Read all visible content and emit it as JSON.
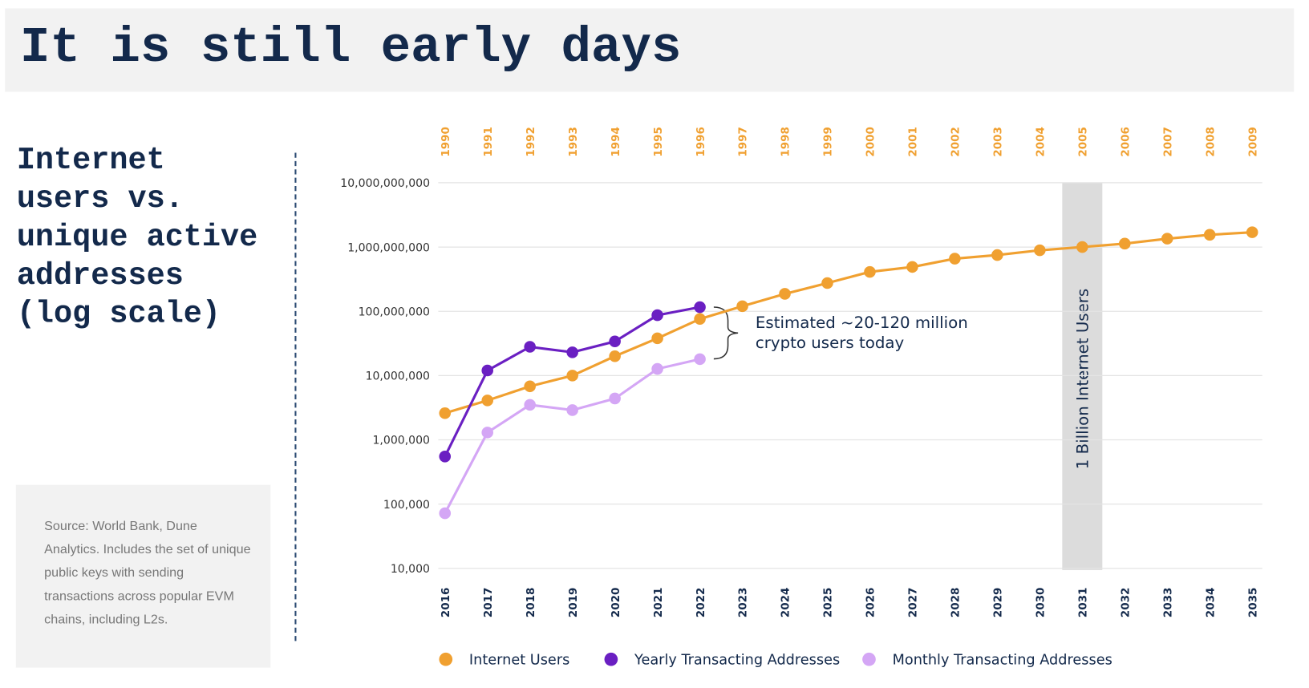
{
  "header": {
    "title": "It is still early days"
  },
  "sidebar": {
    "title": "Internet users vs. unique active addresses (log scale)",
    "source": "Source: World Bank, Dune Analytics. Includes the set of unique public keys with sending transactions across popular EVM chains, including L2s."
  },
  "chart_data": {
    "type": "line",
    "log_scale": true,
    "grid": true,
    "legend": "bottom",
    "categories": [
      "2016",
      "2017",
      "2018",
      "2019",
      "2020",
      "2021",
      "2022",
      "2023",
      "2024",
      "2025",
      "2026",
      "2027",
      "2028",
      "2029",
      "2030",
      "2031",
      "2032",
      "2033",
      "2034",
      "2035"
    ],
    "top_categories": [
      "1990",
      "1991",
      "1992",
      "1993",
      "1994",
      "1995",
      "1996",
      "1997",
      "1998",
      "1999",
      "2000",
      "2001",
      "2002",
      "2003",
      "2004",
      "2005",
      "2006",
      "2007",
      "2008",
      "2009"
    ],
    "ylim": [
      10000,
      10000000000
    ],
    "yticks": [
      {
        "value": 10000,
        "label": "10,000"
      },
      {
        "value": 100000,
        "label": "100,000"
      },
      {
        "value": 1000000,
        "label": "1,000,000"
      },
      {
        "value": 10000000,
        "label": "10,000,000"
      },
      {
        "value": 100000000,
        "label": "100,000,000"
      },
      {
        "value": 1000000000,
        "label": "1,000,000,000"
      },
      {
        "value": 10000000000,
        "label": "10,000,000,000"
      }
    ],
    "series": [
      {
        "name": "Internet Users",
        "color": "#f0a030",
        "values": [
          2600000,
          4100000,
          6800000,
          10000000,
          20000000,
          38000000,
          76000000,
          120000000,
          187000000,
          275000000,
          410000000,
          490000000,
          660000000,
          750000000,
          890000000,
          1000000000,
          1130000000,
          1350000000,
          1550000000,
          1700000000
        ]
      },
      {
        "name": "Yearly Transacting Addresses",
        "color": "#6a1fc2",
        "values": [
          550000,
          12000000,
          28000000,
          23000000,
          34000000,
          87000000,
          116000000,
          null,
          null,
          null,
          null,
          null,
          null,
          null,
          null,
          null,
          null,
          null,
          null,
          null
        ]
      },
      {
        "name": "Monthly Transacting Addresses",
        "color": "#d4a6f5",
        "values": [
          72000,
          1300000,
          3500000,
          2900000,
          4400000,
          12700000,
          18000000,
          null,
          null,
          null,
          null,
          null,
          null,
          null,
          null,
          null,
          null,
          null,
          null,
          null
        ]
      }
    ],
    "band": {
      "category": "2031",
      "label": "1 Billion Internet Users"
    },
    "annotation": [
      "Estimated ~20-120 million",
      "crypto users today"
    ]
  }
}
